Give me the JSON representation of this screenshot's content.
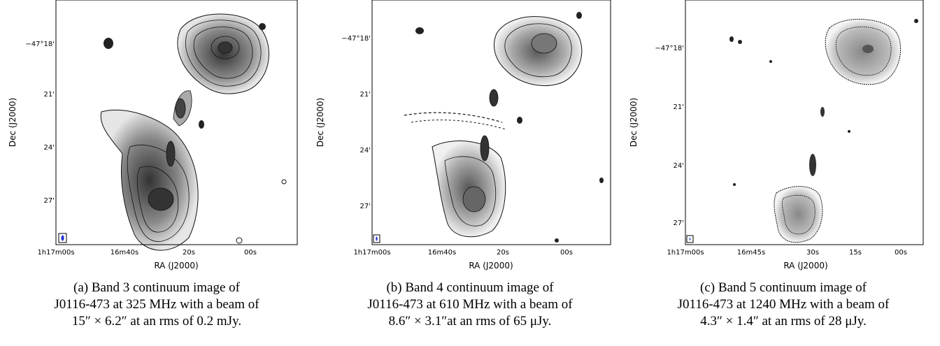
{
  "panels": [
    {
      "id": "a",
      "x_ticks": [
        "1h17m00s",
        "16m40s",
        "20s",
        "00s"
      ],
      "y_ticks": [
        "−47°18'",
        "21'",
        "24'",
        "27'"
      ],
      "xlabel": "RA (J2000)",
      "ylabel": "Dec (J2000)",
      "caption": [
        "(a) Band 3 continuum image of",
        "J0116-473 at 325 MHz with a beam of",
        "15″ × 6.2″ at an rms of 0.2 mJy."
      ]
    },
    {
      "id": "b",
      "x_ticks": [
        "1h17m00s",
        "16m40s",
        "20s",
        "00s"
      ],
      "y_ticks": [
        "−47°18'",
        "21'",
        "24'",
        "27'"
      ],
      "xlabel": "RA (J2000)",
      "ylabel": "Dec (J2000)",
      "caption": [
        "(b) Band 4 continuum image of",
        "J0116-473 at 610 MHz with a beam of",
        "8.6″ × 3.1″at an rms of 65 μJy."
      ]
    },
    {
      "id": "c",
      "x_ticks": [
        "1h17m00s",
        "16m45s",
        "30s",
        "15s",
        "00s"
      ],
      "y_ticks": [
        "−47°18'",
        "21'",
        "24'",
        "27'"
      ],
      "xlabel": "RA (J2000)",
      "ylabel": "Dec (J2000)",
      "caption": [
        "(c) Band 5 continuum image of",
        "J0116-473 at 1240 MHz with a beam of",
        "4.3″ × 1.4″ at an rms of 28 μJy."
      ]
    }
  ],
  "colors": {
    "frame": "#000000",
    "contour": "#111111",
    "fill_dark": "#2a2a2a",
    "fill_light": "#d8d8d8",
    "beam": "#1a33cc"
  }
}
